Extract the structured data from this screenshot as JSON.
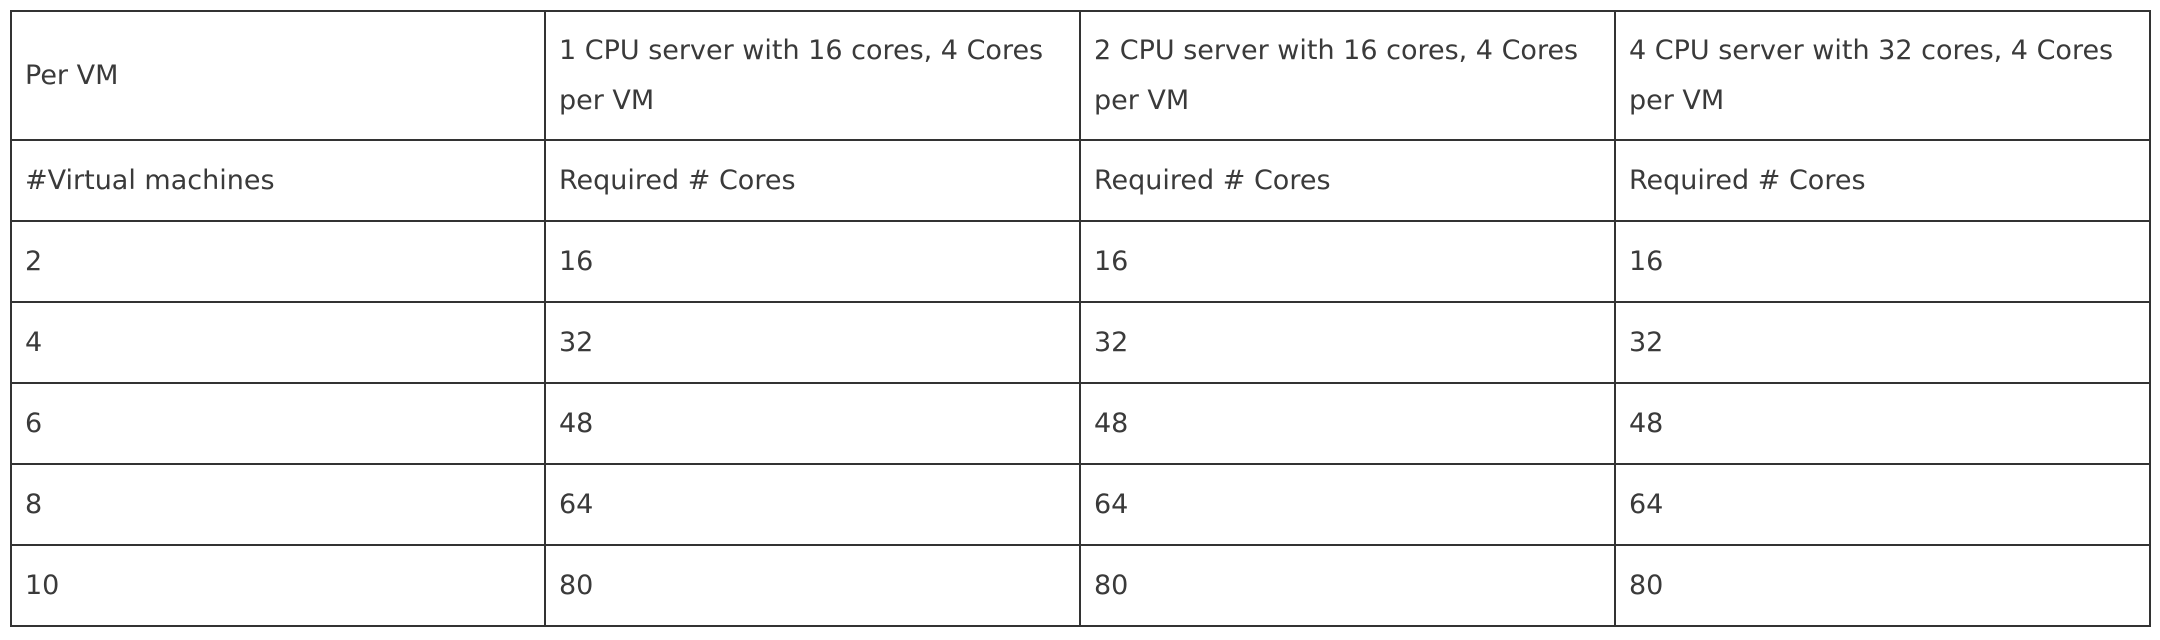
{
  "table": {
    "header_row": [
      "Per VM",
      "1 CPU server with 16 cores, 4 Cores per VM",
      "2 CPU server with 16 cores, 4 Cores per VM",
      "4 CPU server with 32 cores, 4 Cores per VM"
    ],
    "subheader_row": [
      "#Virtual machines",
      "Required # Cores",
      "Required # Cores",
      "Required # Cores"
    ],
    "rows": [
      [
        "2",
        "16",
        "16",
        "16"
      ],
      [
        "4",
        "32",
        "32",
        "32"
      ],
      [
        "6",
        "48",
        "48",
        "48"
      ],
      [
        "8",
        "64",
        "64",
        "64"
      ],
      [
        "10",
        "80",
        "80",
        "80"
      ]
    ]
  }
}
